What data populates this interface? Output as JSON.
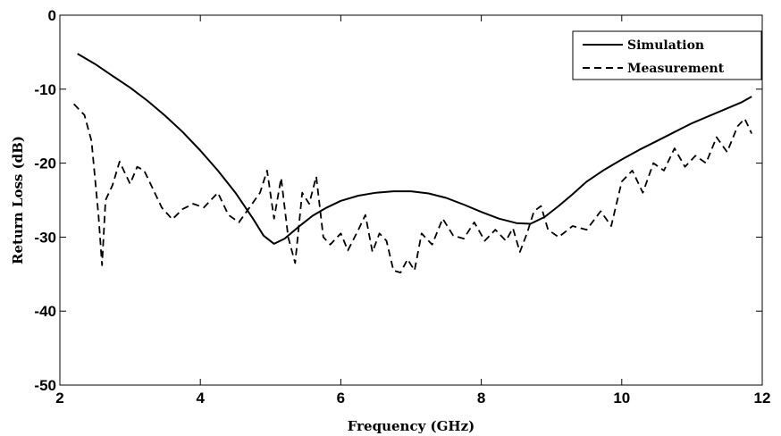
{
  "chart_data": {
    "type": "line",
    "title": "",
    "xlabel": "Frequency  (GHz)",
    "ylabel": "Return Loss  (dB)",
    "xlim": [
      2,
      12
    ],
    "ylim": [
      -50,
      0
    ],
    "xticks": [
      2,
      4,
      6,
      8,
      10,
      12
    ],
    "yticks": [
      0,
      -10,
      -20,
      -30,
      -40,
      -50
    ],
    "xtick_labels": [
      "2",
      "4",
      "6",
      "8",
      "10",
      "12"
    ],
    "ytick_labels": [
      "0",
      "-10",
      "-20",
      "-30",
      "-40",
      "-50"
    ],
    "grid": false,
    "legend_position": "top-right",
    "series": [
      {
        "name": "Simulation",
        "style": "solid",
        "color": "#000000",
        "x": [
          2.25,
          2.5,
          2.75,
          3.0,
          3.25,
          3.5,
          3.75,
          4.0,
          4.25,
          4.5,
          4.75,
          4.9,
          5.05,
          5.2,
          5.4,
          5.6,
          5.8,
          6.0,
          6.25,
          6.5,
          6.75,
          7.0,
          7.25,
          7.5,
          7.75,
          8.0,
          8.25,
          8.5,
          8.7,
          8.9,
          9.1,
          9.3,
          9.5,
          9.75,
          10.0,
          10.25,
          10.5,
          10.75,
          11.0,
          11.25,
          11.5,
          11.7,
          11.85
        ],
        "y": [
          -5.2,
          -6.6,
          -8.2,
          -9.8,
          -11.6,
          -13.6,
          -15.8,
          -18.3,
          -21.0,
          -24.0,
          -27.5,
          -29.8,
          -30.9,
          -30.2,
          -28.6,
          -27.1,
          -26.0,
          -25.1,
          -24.4,
          -24.0,
          -23.8,
          -23.8,
          -24.1,
          -24.7,
          -25.6,
          -26.6,
          -27.5,
          -28.1,
          -28.2,
          -27.3,
          -25.8,
          -24.2,
          -22.5,
          -20.9,
          -19.5,
          -18.2,
          -17.0,
          -15.8,
          -14.6,
          -13.6,
          -12.6,
          -11.8,
          -11.0
        ]
      },
      {
        "name": "Measurement",
        "style": "dashed",
        "color": "#000000",
        "x": [
          2.2,
          2.35,
          2.45,
          2.55,
          2.6,
          2.65,
          2.75,
          2.85,
          3.0,
          3.1,
          3.2,
          3.3,
          3.45,
          3.6,
          3.75,
          3.9,
          4.05,
          4.25,
          4.4,
          4.55,
          4.7,
          4.85,
          4.95,
          5.05,
          5.15,
          5.25,
          5.35,
          5.45,
          5.55,
          5.65,
          5.75,
          5.85,
          6.0,
          6.1,
          6.25,
          6.35,
          6.45,
          6.55,
          6.65,
          6.75,
          6.85,
          6.95,
          7.05,
          7.15,
          7.3,
          7.45,
          7.6,
          7.75,
          7.9,
          8.05,
          8.2,
          8.35,
          8.45,
          8.55,
          8.65,
          8.75,
          8.85,
          8.95,
          9.1,
          9.3,
          9.5,
          9.7,
          9.85,
          10.0,
          10.15,
          10.3,
          10.45,
          10.6,
          10.75,
          10.9,
          11.05,
          11.2,
          11.35,
          11.5,
          11.65,
          11.75,
          11.85
        ],
        "y": [
          -12.0,
          -13.5,
          -17.0,
          -27.0,
          -33.8,
          -25.0,
          -23.0,
          -19.8,
          -22.8,
          -20.5,
          -21.0,
          -23.0,
          -26.0,
          -27.6,
          -26.2,
          -25.5,
          -26.0,
          -24.0,
          -27.0,
          -28.0,
          -26.0,
          -24.0,
          -21.0,
          -27.5,
          -22.0,
          -30.0,
          -33.5,
          -24.0,
          -25.5,
          -21.8,
          -30.0,
          -31.0,
          -29.5,
          -31.8,
          -29.0,
          -27.0,
          -32.0,
          -29.5,
          -30.5,
          -34.5,
          -34.8,
          -33.0,
          -34.5,
          -29.5,
          -31.0,
          -27.5,
          -29.8,
          -30.2,
          -28.0,
          -30.5,
          -29.0,
          -30.5,
          -28.8,
          -32.0,
          -29.5,
          -26.5,
          -25.8,
          -29.0,
          -30.0,
          -28.5,
          -29.0,
          -26.5,
          -28.5,
          -22.5,
          -21.0,
          -24.0,
          -20.0,
          -21.0,
          -18.0,
          -20.5,
          -19.0,
          -20.0,
          -16.5,
          -18.5,
          -15.0,
          -14.0,
          -16.0
        ]
      }
    ]
  }
}
